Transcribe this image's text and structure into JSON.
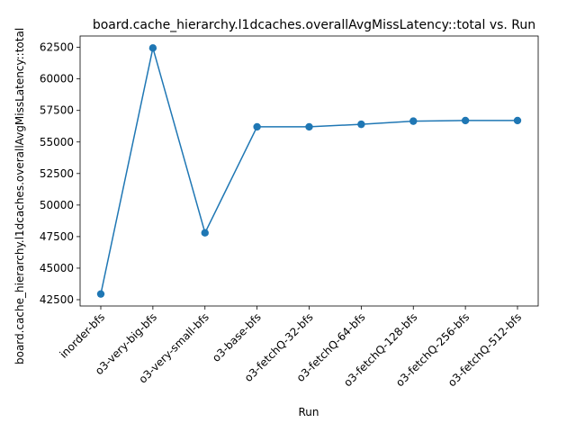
{
  "chart_data": {
    "type": "line",
    "title": "board.cache_hierarchy.l1dcaches.overallAvgMissLatency::total vs. Run",
    "xlabel": "Run",
    "ylabel": "board.cache_hierarchy.l1dcaches.overallAvgMissLatency::total",
    "categories": [
      "inorder-bfs",
      "o3-very-big-bfs",
      "o3-very-small-bfs",
      "o3-base-bfs",
      "o3-fetchQ-32-bfs",
      "o3-fetchQ-64-bfs",
      "o3-fetchQ-128-bfs",
      "o3-fetchQ-256-bfs",
      "o3-fetchQ-512-bfs"
    ],
    "values": [
      42950,
      62450,
      47800,
      56200,
      56200,
      56400,
      56650,
      56700,
      56700
    ],
    "yticks": [
      42500,
      45000,
      47500,
      50000,
      52500,
      55000,
      57500,
      60000,
      62500
    ],
    "ylim": [
      42000,
      63400
    ],
    "grid": false,
    "line_color": "#1f77b4",
    "marker": "circle"
  }
}
